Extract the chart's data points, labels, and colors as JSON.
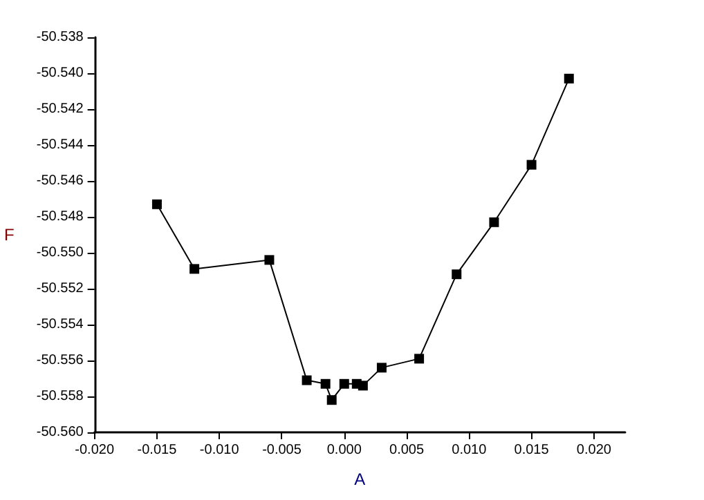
{
  "chart_data": {
    "type": "line",
    "xlabel": "A",
    "ylabel": "F",
    "x": [
      -0.015,
      -0.012,
      -0.006,
      -0.003,
      -0.0015,
      -0.001,
      0,
      0.001,
      0.0015,
      0.003,
      0.006,
      0.009,
      0.012,
      0.015,
      0.018
    ],
    "series": [
      {
        "color": "#000000",
        "values": [
          -50.5473,
          -50.5509,
          -50.5504,
          -50.5571,
          -50.5573,
          -50.5582,
          -50.5573,
          -50.5573,
          -50.5574,
          -50.5564,
          -50.5559,
          -50.5512,
          -50.5483,
          -50.5451,
          -50.5403
        ]
      }
    ],
    "xlim": [
      -0.02,
      0.0225
    ],
    "xticks": [
      {
        "value": -0.02,
        "label": "-0.020"
      },
      {
        "value": -0.015,
        "label": "-0.015"
      },
      {
        "value": -0.01,
        "label": "-0.010"
      },
      {
        "value": -0.005,
        "label": "-0.005"
      },
      {
        "value": 0,
        "label": "0.000"
      },
      {
        "value": 0.005,
        "label": "0.005"
      },
      {
        "value": 0.01,
        "label": "0.010"
      },
      {
        "value": 0.015,
        "label": "0.015"
      },
      {
        "value": 0.02,
        "label": "0.020"
      }
    ],
    "ylim": [
      -50.56,
      -50.538
    ],
    "yticks": [
      {
        "value": -50.56,
        "label": "-50.560"
      },
      {
        "value": -50.558,
        "label": "-50.558"
      },
      {
        "value": -50.556,
        "label": "-50.556"
      },
      {
        "value": -50.554,
        "label": "-50.554"
      },
      {
        "value": -50.552,
        "label": "-50.552"
      },
      {
        "value": -50.55,
        "label": "-50.550"
      },
      {
        "value": -50.548,
        "label": "-50.548"
      },
      {
        "value": -50.546,
        "label": "-50.546"
      },
      {
        "value": -50.544,
        "label": "-50.544"
      },
      {
        "value": -50.542,
        "label": "-50.542"
      },
      {
        "value": -50.54,
        "label": "-50.540"
      },
      {
        "value": -50.538,
        "label": "-50.538"
      }
    ],
    "marker": "square",
    "line_style": "solid"
  }
}
